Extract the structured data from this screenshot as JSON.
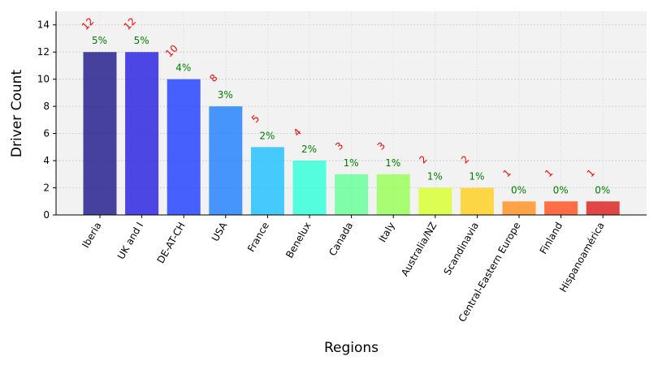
{
  "chart_data": {
    "type": "bar",
    "title": "",
    "xlabel": "Regions",
    "ylabel": "Driver Count",
    "categories": [
      "Iberia",
      "UK and I",
      "DE-AT-CH",
      "USA",
      "France",
      "Benelux",
      "Canada",
      "Italy",
      "Australia/NZ",
      "Scandinavia",
      "Central-Eastern Europe",
      "Finland",
      "Hispanoamérica"
    ],
    "values": [
      12,
      12,
      10,
      8,
      5,
      4,
      3,
      3,
      2,
      2,
      1,
      1,
      1
    ],
    "count_labels": [
      "12",
      "12",
      "10",
      "8",
      "5",
      "4",
      "3",
      "3",
      "2",
      "2",
      "1",
      "1",
      "1"
    ],
    "percent_labels": [
      "5%",
      "5%",
      "4%",
      "3%",
      "2%",
      "2%",
      "1%",
      "1%",
      "1%",
      "1%",
      "0%",
      "0%",
      "0%"
    ],
    "ylim": [
      0,
      15
    ],
    "yticks": [
      0,
      2,
      4,
      6,
      8,
      10,
      12,
      14
    ],
    "grid": true,
    "colors": [
      "#1f1a8a",
      "#2620e0",
      "#2040ff",
      "#2080ff",
      "#20c0ff",
      "#30ffd8",
      "#66ff99",
      "#99ff55",
      "#d8ff30",
      "#ffd020",
      "#ff9020",
      "#ff5020",
      "#dd2020"
    ],
    "count_label_color": "#ff0000",
    "percent_label_color": "#008000",
    "plot_background": "#f2f2f2"
  }
}
